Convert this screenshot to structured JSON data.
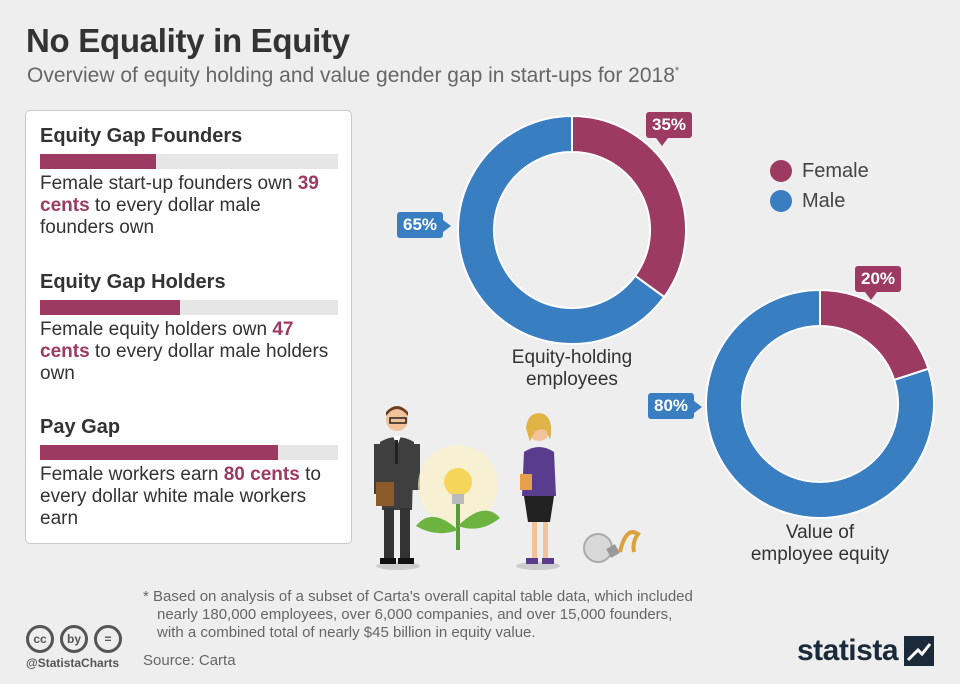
{
  "title": "No Equality in Equity",
  "subtitle": "Overview of equity holding and value gender gap in start-ups for 2018",
  "subtitle_marker": "*",
  "gaps": [
    {
      "title": "Equity Gap Founders",
      "fraction": 0.39,
      "text_pre": "Female start-up founders own",
      "highlight": "39 cents",
      "text_post": "to every dollar male founders own"
    },
    {
      "title": "Equity Gap Holders",
      "fraction": 0.47,
      "text_pre": "Female equity holders own",
      "highlight": "47 cents",
      "text_post": "to every dollar male holders own"
    },
    {
      "title": "Pay Gap",
      "fraction": 0.8,
      "text_pre": "Female workers earn",
      "highlight": "80 cents",
      "text_post": "to every dollar white male workers earn"
    }
  ],
  "chart_data": [
    {
      "type": "pie",
      "title": "Equity-holding employees",
      "title_line1": "Equity-holding",
      "title_line2": "employees",
      "categories": [
        "Female",
        "Male"
      ],
      "values": [
        35,
        65
      ],
      "labels": [
        "35%",
        "65%"
      ]
    },
    {
      "type": "pie",
      "title": "Value of employee equity",
      "title_line1": "Value of",
      "title_line2": "employee equity",
      "categories": [
        "Female",
        "Male"
      ],
      "values": [
        20,
        80
      ],
      "labels": [
        "20%",
        "80%"
      ]
    }
  ],
  "legend": [
    {
      "label": "Female",
      "color": "#9c3a62"
    },
    {
      "label": "Male",
      "color": "#3a7ec2"
    }
  ],
  "colors": {
    "female": "#9c3a62",
    "male": "#3a7ec2"
  },
  "footnote": [
    "* Based on analysis of a subset of Carta's overall capital table data, which included",
    "nearly 180,000 employees, over 6,000 companies, and over 15,000 founders,",
    "with a combined total of nearly $45 billion in equity value."
  ],
  "cc_icons": [
    "cc",
    "by",
    "="
  ],
  "handle": "@StatistaCharts",
  "source": "Source: Carta",
  "logo": "statista"
}
